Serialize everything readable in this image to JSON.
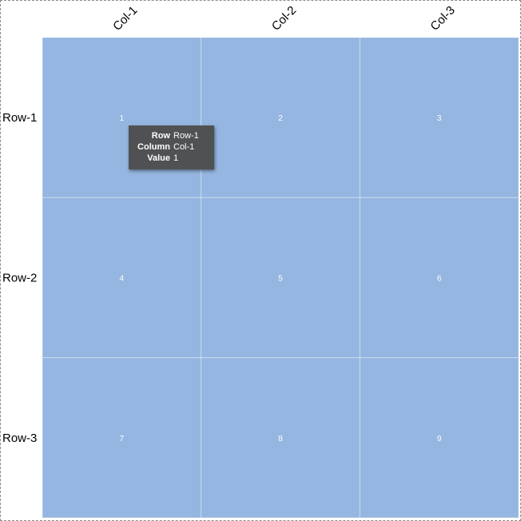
{
  "chart_data": {
    "type": "heatmap",
    "rows": [
      "Row-1",
      "Row-2",
      "Row-3"
    ],
    "columns": [
      "Col-1",
      "Col-2",
      "Col-3"
    ],
    "values": [
      [
        1,
        2,
        3
      ],
      [
        4,
        5,
        6
      ],
      [
        7,
        8,
        9
      ]
    ],
    "cell_color": "#95b6e0",
    "grid": true,
    "column_label_rotation_deg": -45
  },
  "tooltip": {
    "row_key": "Row",
    "row_value": "Row-1",
    "column_key": "Column",
    "column_value": "Col-1",
    "value_key": "Value",
    "value_value": "1"
  }
}
